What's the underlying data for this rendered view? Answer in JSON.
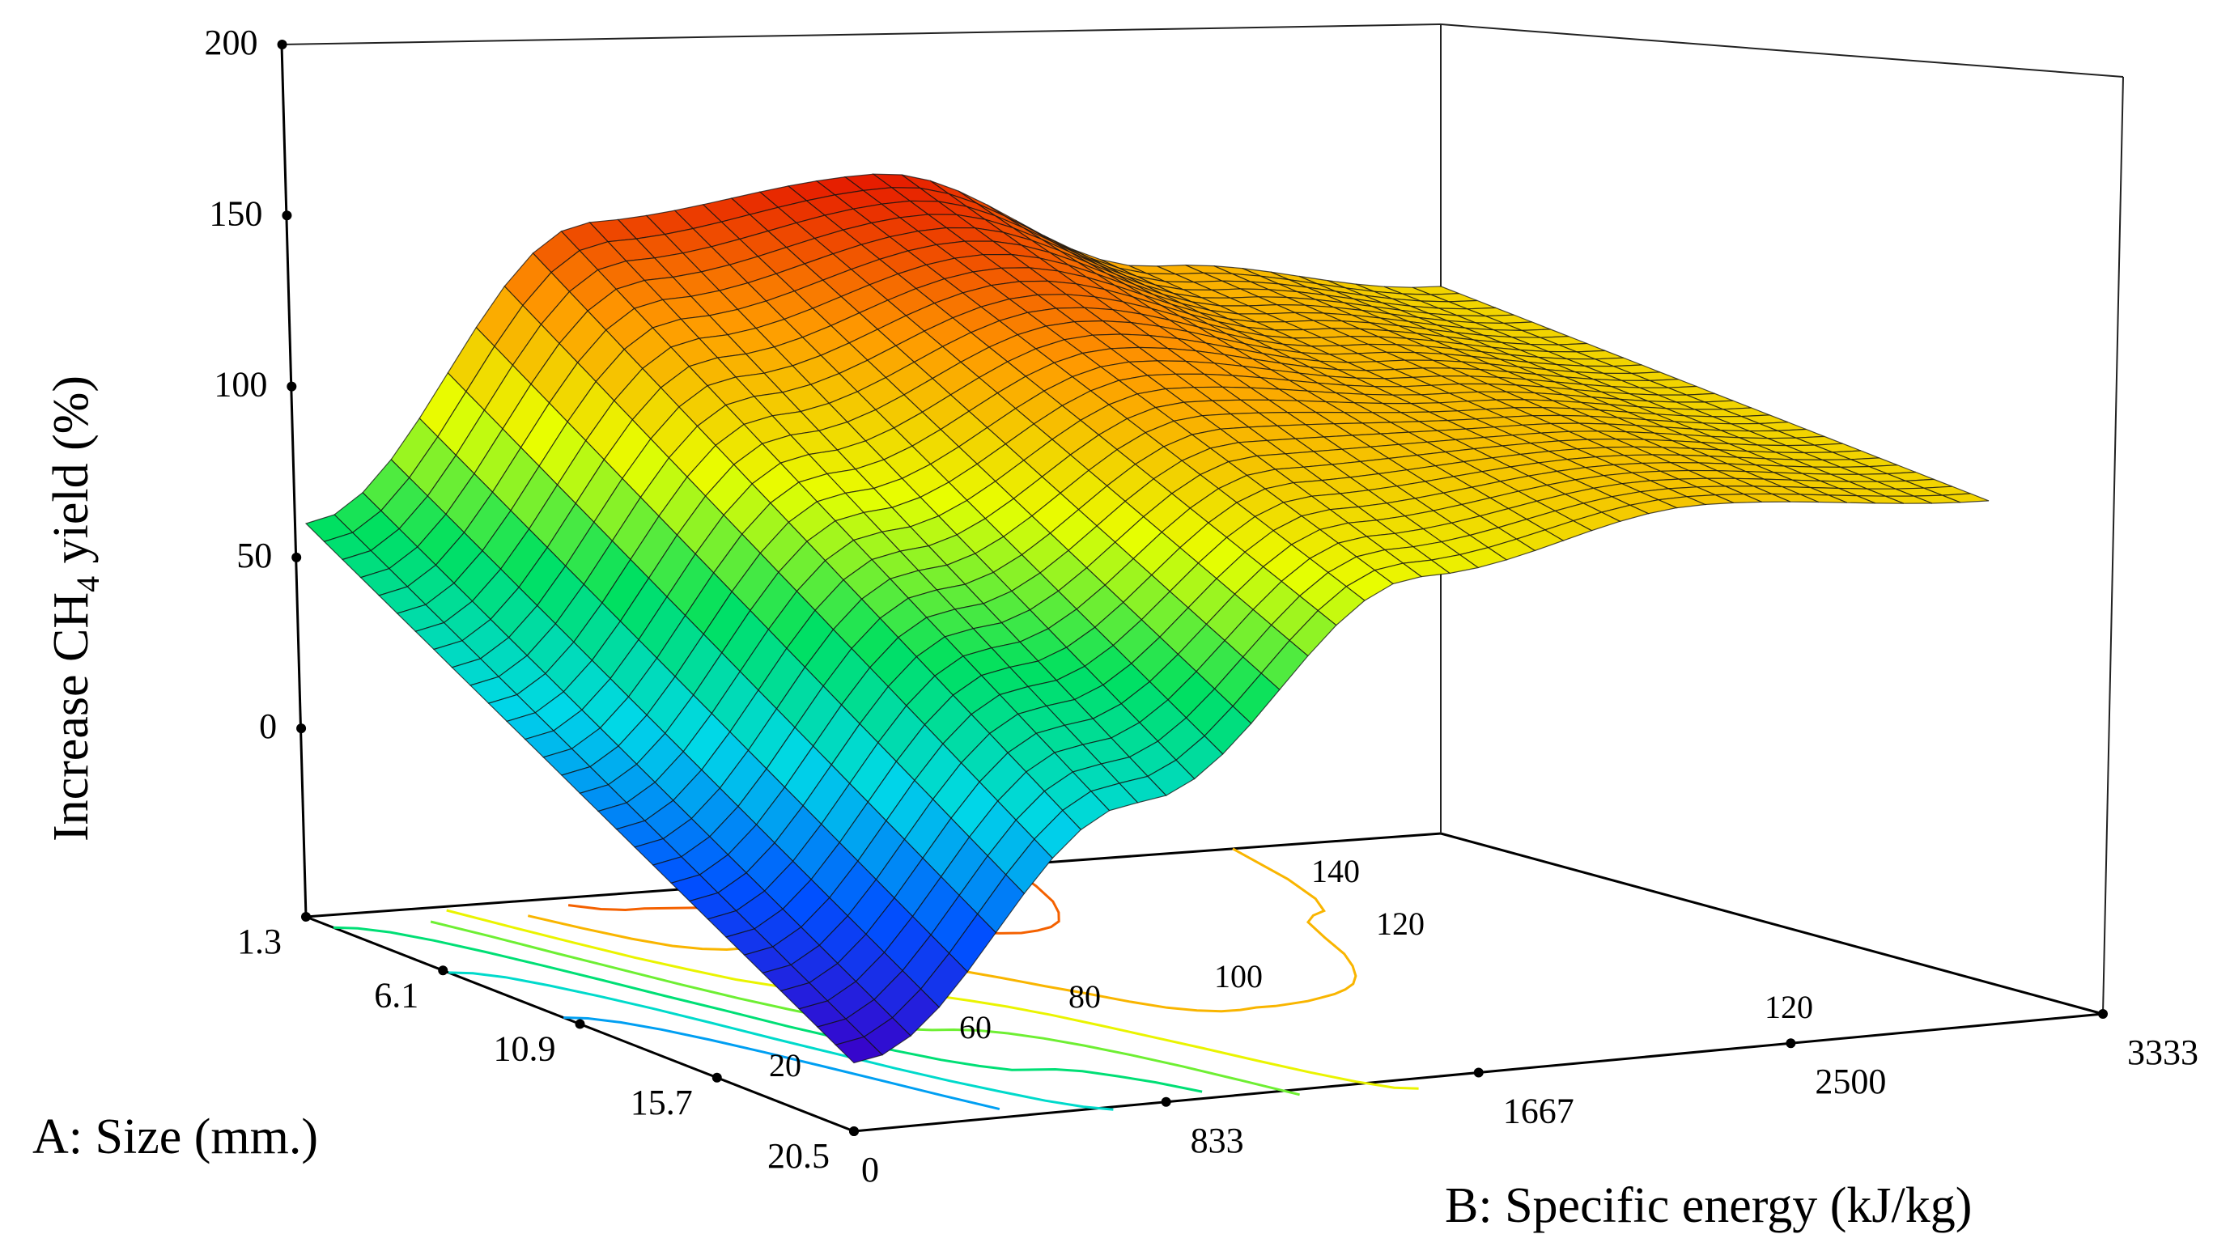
{
  "chart_data": {
    "type": "surface3d",
    "title": "",
    "z_axis": {
      "label_prefix": "Increase CH",
      "label_subscript": "4",
      "label_suffix": " yield (%)",
      "ticks": [
        "200",
        "150",
        "100",
        "50",
        "0"
      ],
      "range": [
        -50,
        200
      ]
    },
    "x_axis": {
      "label": "A: Size (mm.)",
      "ticks": [
        "1.3",
        "6.1",
        "10.9",
        "15.7",
        "20.5"
      ],
      "range": [
        1.3,
        20.5
      ]
    },
    "y_axis": {
      "label": "B: Specific energy (kJ/kg)",
      "ticks": [
        "0",
        "833",
        "1667",
        "2500",
        "3333"
      ],
      "range": [
        0,
        3333
      ]
    },
    "surface_samples": {
      "size_mm": [
        1.3,
        20.5
      ],
      "specific_energy": [
        0,
        833,
        1667,
        2500,
        3333
      ],
      "yield_at_size_1_3": [
        65,
        147,
        155,
        122,
        110
      ],
      "yield_at_size_20_5": [
        -30,
        40,
        100,
        115,
        110
      ]
    },
    "contour_levels": [
      "20",
      "40",
      "60",
      "80",
      "100",
      "120",
      "140",
      "120"
    ],
    "colormap": [
      "#3a00c8",
      "#0050ff",
      "#00d8e8",
      "#00e060",
      "#e8ff00",
      "#ff9a00",
      "#e00000"
    ]
  }
}
